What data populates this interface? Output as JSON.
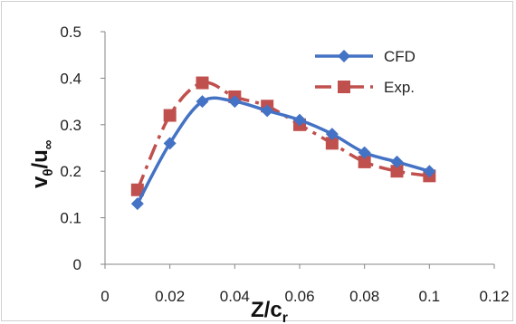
{
  "chart_data": {
    "type": "line",
    "xlim": [
      0,
      0.12
    ],
    "ylim": [
      0,
      0.5
    ],
    "x_ticks": [
      "0",
      "0.02",
      "0.04",
      "0.06",
      "0.08",
      "0.1",
      "0.12"
    ],
    "y_ticks": [
      "0",
      "0.1",
      "0.2",
      "0.3",
      "0.4",
      "0.5"
    ],
    "xlabel_main": "Z/c",
    "xlabel_sub": "r",
    "ylabel_main": "v",
    "ylabel_sub1": "θ",
    "ylabel_mid": "/u",
    "ylabel_sub2": "∞",
    "grid": false,
    "legend_position": "top-right",
    "series": [
      {
        "name": "CFD",
        "color": "#4472c4",
        "marker": "diamond",
        "line": "solid-smooth",
        "x": [
          0.01,
          0.02,
          0.03,
          0.04,
          0.05,
          0.06,
          0.07,
          0.08,
          0.09,
          0.1
        ],
        "y": [
          0.13,
          0.26,
          0.35,
          0.35,
          0.33,
          0.31,
          0.28,
          0.24,
          0.22,
          0.2
        ]
      },
      {
        "name": "Exp.",
        "color": "#c0504d",
        "marker": "square",
        "line": "dashed",
        "x": [
          0.01,
          0.02,
          0.03,
          0.04,
          0.05,
          0.06,
          0.07,
          0.08,
          0.09,
          0.1
        ],
        "y": [
          0.16,
          0.32,
          0.39,
          0.36,
          0.34,
          0.3,
          0.26,
          0.22,
          0.2,
          0.19
        ]
      }
    ]
  }
}
